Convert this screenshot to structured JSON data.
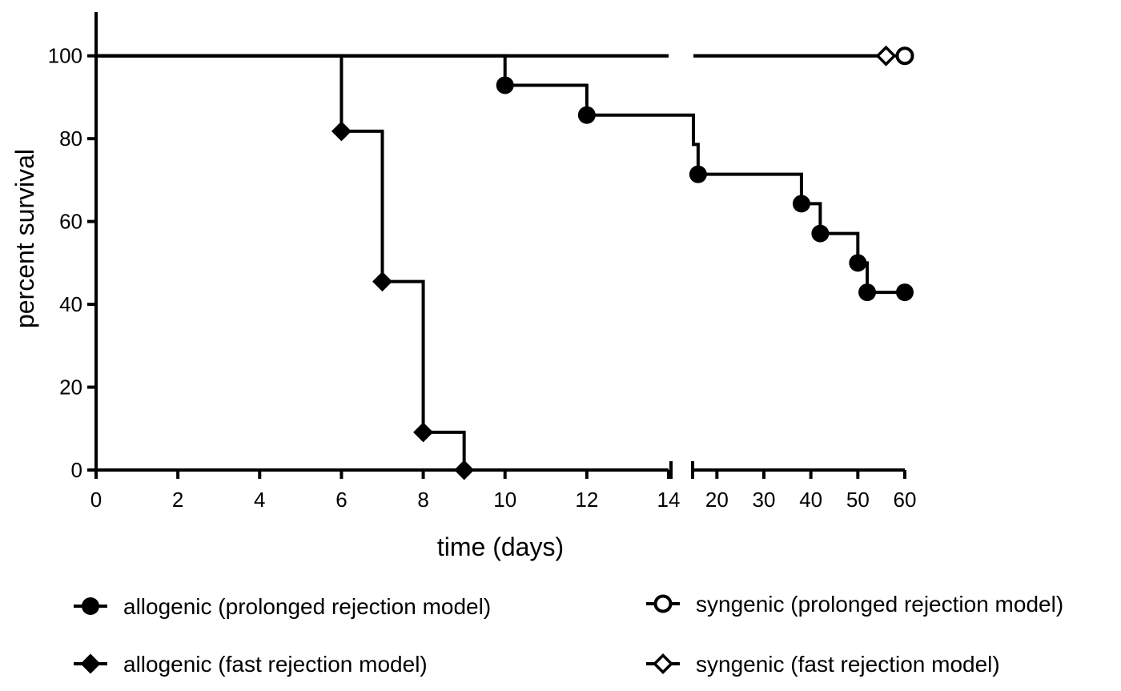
{
  "chart_data": {
    "type": "line",
    "subtype": "kaplan-meier step survival curve",
    "title": "",
    "xlabel": "time (days)",
    "ylabel": "percent survival",
    "x_axis": {
      "segments": [
        {
          "range": [
            0,
            14
          ],
          "ticks": [
            0,
            2,
            4,
            6,
            8,
            10,
            12,
            14
          ]
        },
        {
          "range": [
            15,
            60
          ],
          "ticks": [
            20,
            30,
            40,
            50,
            60
          ]
        }
      ],
      "tick_labels": [
        "0",
        "2",
        "4",
        "6",
        "8",
        "10",
        "12",
        "14",
        "20",
        "30",
        "40",
        "50",
        "60"
      ]
    },
    "y_axis": {
      "range": [
        0,
        110
      ],
      "ticks": [
        0,
        20,
        40,
        60,
        80,
        100
      ],
      "tick_labels": [
        "0",
        "20",
        "40",
        "60",
        "80",
        "100"
      ]
    },
    "grid": false,
    "legend_position": "bottom",
    "series": [
      {
        "name": "allogenic (prolonged rejection model)",
        "marker": "filled-circle",
        "x": [
          0,
          10,
          12,
          15,
          16,
          38,
          42,
          50,
          52,
          60
        ],
        "y": [
          100,
          92.9,
          85.7,
          78.6,
          71.4,
          64.3,
          57.1,
          50.0,
          42.9,
          42.9
        ],
        "marker_points": [
          [
            10,
            92.9
          ],
          [
            12,
            85.7
          ],
          [
            16,
            71.4
          ],
          [
            38,
            64.3
          ],
          [
            42,
            57.1
          ],
          [
            50,
            50.0
          ],
          [
            52,
            42.9
          ],
          [
            60,
            42.9
          ]
        ]
      },
      {
        "name": "allogenic (fast rejection model)",
        "marker": "filled-diamond",
        "x": [
          0,
          6,
          7,
          8,
          9
        ],
        "y": [
          100,
          81.8,
          45.5,
          9.1,
          0
        ],
        "marker_points": [
          [
            6,
            81.8
          ],
          [
            7,
            45.5
          ],
          [
            8,
            9.1
          ],
          [
            9,
            0
          ]
        ]
      },
      {
        "name": "syngenic (prolonged rejection model)",
        "marker": "open-circle",
        "x": [
          0,
          60
        ],
        "y": [
          100,
          100
        ],
        "marker_points": [
          [
            60,
            100
          ]
        ]
      },
      {
        "name": "syngenic (fast rejection model)",
        "marker": "open-diamond",
        "x": [
          0,
          56
        ],
        "y": [
          100,
          100
        ],
        "marker_points": [
          [
            56,
            100
          ]
        ]
      }
    ]
  }
}
